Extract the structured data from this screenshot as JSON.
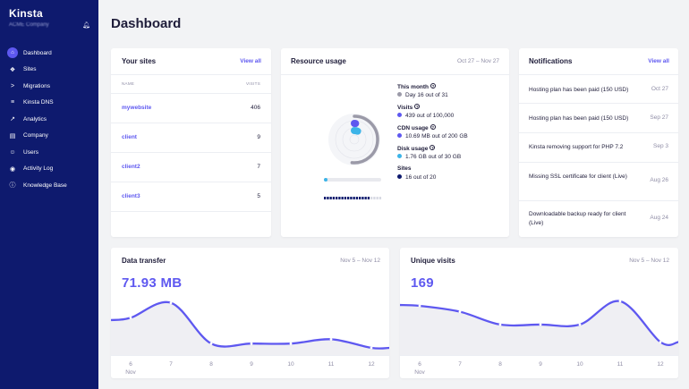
{
  "sidebar": {
    "logo": "Kinsta",
    "company": "ACME Company",
    "items": [
      {
        "label": "Dashboard",
        "icon": "home-icon"
      },
      {
        "label": "Sites",
        "icon": "sites-icon"
      },
      {
        "label": "Migrations",
        "icon": "migrations-icon"
      },
      {
        "label": "Kinsta DNS",
        "icon": "dns-icon"
      },
      {
        "label": "Analytics",
        "icon": "analytics-icon"
      },
      {
        "label": "Company",
        "icon": "company-icon"
      },
      {
        "label": "Users",
        "icon": "add-user-icon"
      },
      {
        "label": "Activity Log",
        "icon": "eye-icon"
      },
      {
        "label": "Knowledge Base",
        "icon": "info-icon"
      }
    ]
  },
  "page": {
    "title": "Dashboard"
  },
  "sites_card": {
    "title": "Your sites",
    "link": "View all",
    "col_name": "NAME",
    "col_visits": "VISITS",
    "rows": [
      {
        "name": "mywebsite",
        "visits": "406"
      },
      {
        "name": "client",
        "visits": "9"
      },
      {
        "name": "client2",
        "visits": "7"
      },
      {
        "name": "client3",
        "visits": "5"
      }
    ]
  },
  "resource_card": {
    "title": "Resource usage",
    "date_range": "Oct 27 – Nov 27",
    "colors": {
      "month": "#9b9aa8",
      "visits": "#5e58f0",
      "cdn": "#5e58f0",
      "disk": "#3cb4e8",
      "sites": "#0e1a6e"
    },
    "items": [
      {
        "label": "This month",
        "value": "Day 16 out of 31",
        "used": 16,
        "total": 31
      },
      {
        "label": "Visits",
        "value": "439 out of 100,000",
        "used": 439,
        "total": 100000
      },
      {
        "label": "CDN usage",
        "value": "10.69 MB out of 200 GB",
        "used": 0.01069,
        "total": 200
      },
      {
        "label": "Disk usage",
        "value": "1.76 GB out of 30 GB",
        "used": 1.76,
        "total": 30
      },
      {
        "label": "Sites",
        "value": "16 out of 20",
        "used": 16,
        "total": 20
      }
    ]
  },
  "notifications_card": {
    "title": "Notifications",
    "link": "View all",
    "items": [
      {
        "text": "Hosting plan has been paid (150 USD)",
        "date": "Oct 27"
      },
      {
        "text": "Hosting plan has been paid (150 USD)",
        "date": "Sep 27"
      },
      {
        "text": "Kinsta removing support for PHP 7.2",
        "date": "Sep 3"
      },
      {
        "text": "Missing SSL certificate for client (Live)",
        "date": "Aug 26"
      },
      {
        "text": "Downloadable backup ready for client (Live)",
        "date": "Aug 24"
      }
    ]
  },
  "chart_data": [
    {
      "type": "area",
      "title": "Data transfer",
      "date_range": "Nov 5 – Nov 12",
      "total": "71.93 MB",
      "x": [
        "6",
        "7",
        "8",
        "9",
        "10",
        "11",
        "12"
      ],
      "x_sublabel": "Nov",
      "values": [
        14,
        21,
        2,
        2,
        2,
        4,
        0
      ],
      "ylim": [
        0,
        25
      ],
      "color": "#5e58f0"
    },
    {
      "type": "area",
      "title": "Unique visits",
      "date_range": "Nov 5 – Nov 12",
      "total": "169",
      "x": [
        "6",
        "7",
        "8",
        "9",
        "10",
        "11",
        "12"
      ],
      "x_sublabel": "Nov",
      "values": [
        36,
        31,
        20,
        20,
        20,
        40,
        5
      ],
      "ylim": [
        0,
        46
      ],
      "color": "#5e58f0"
    }
  ]
}
